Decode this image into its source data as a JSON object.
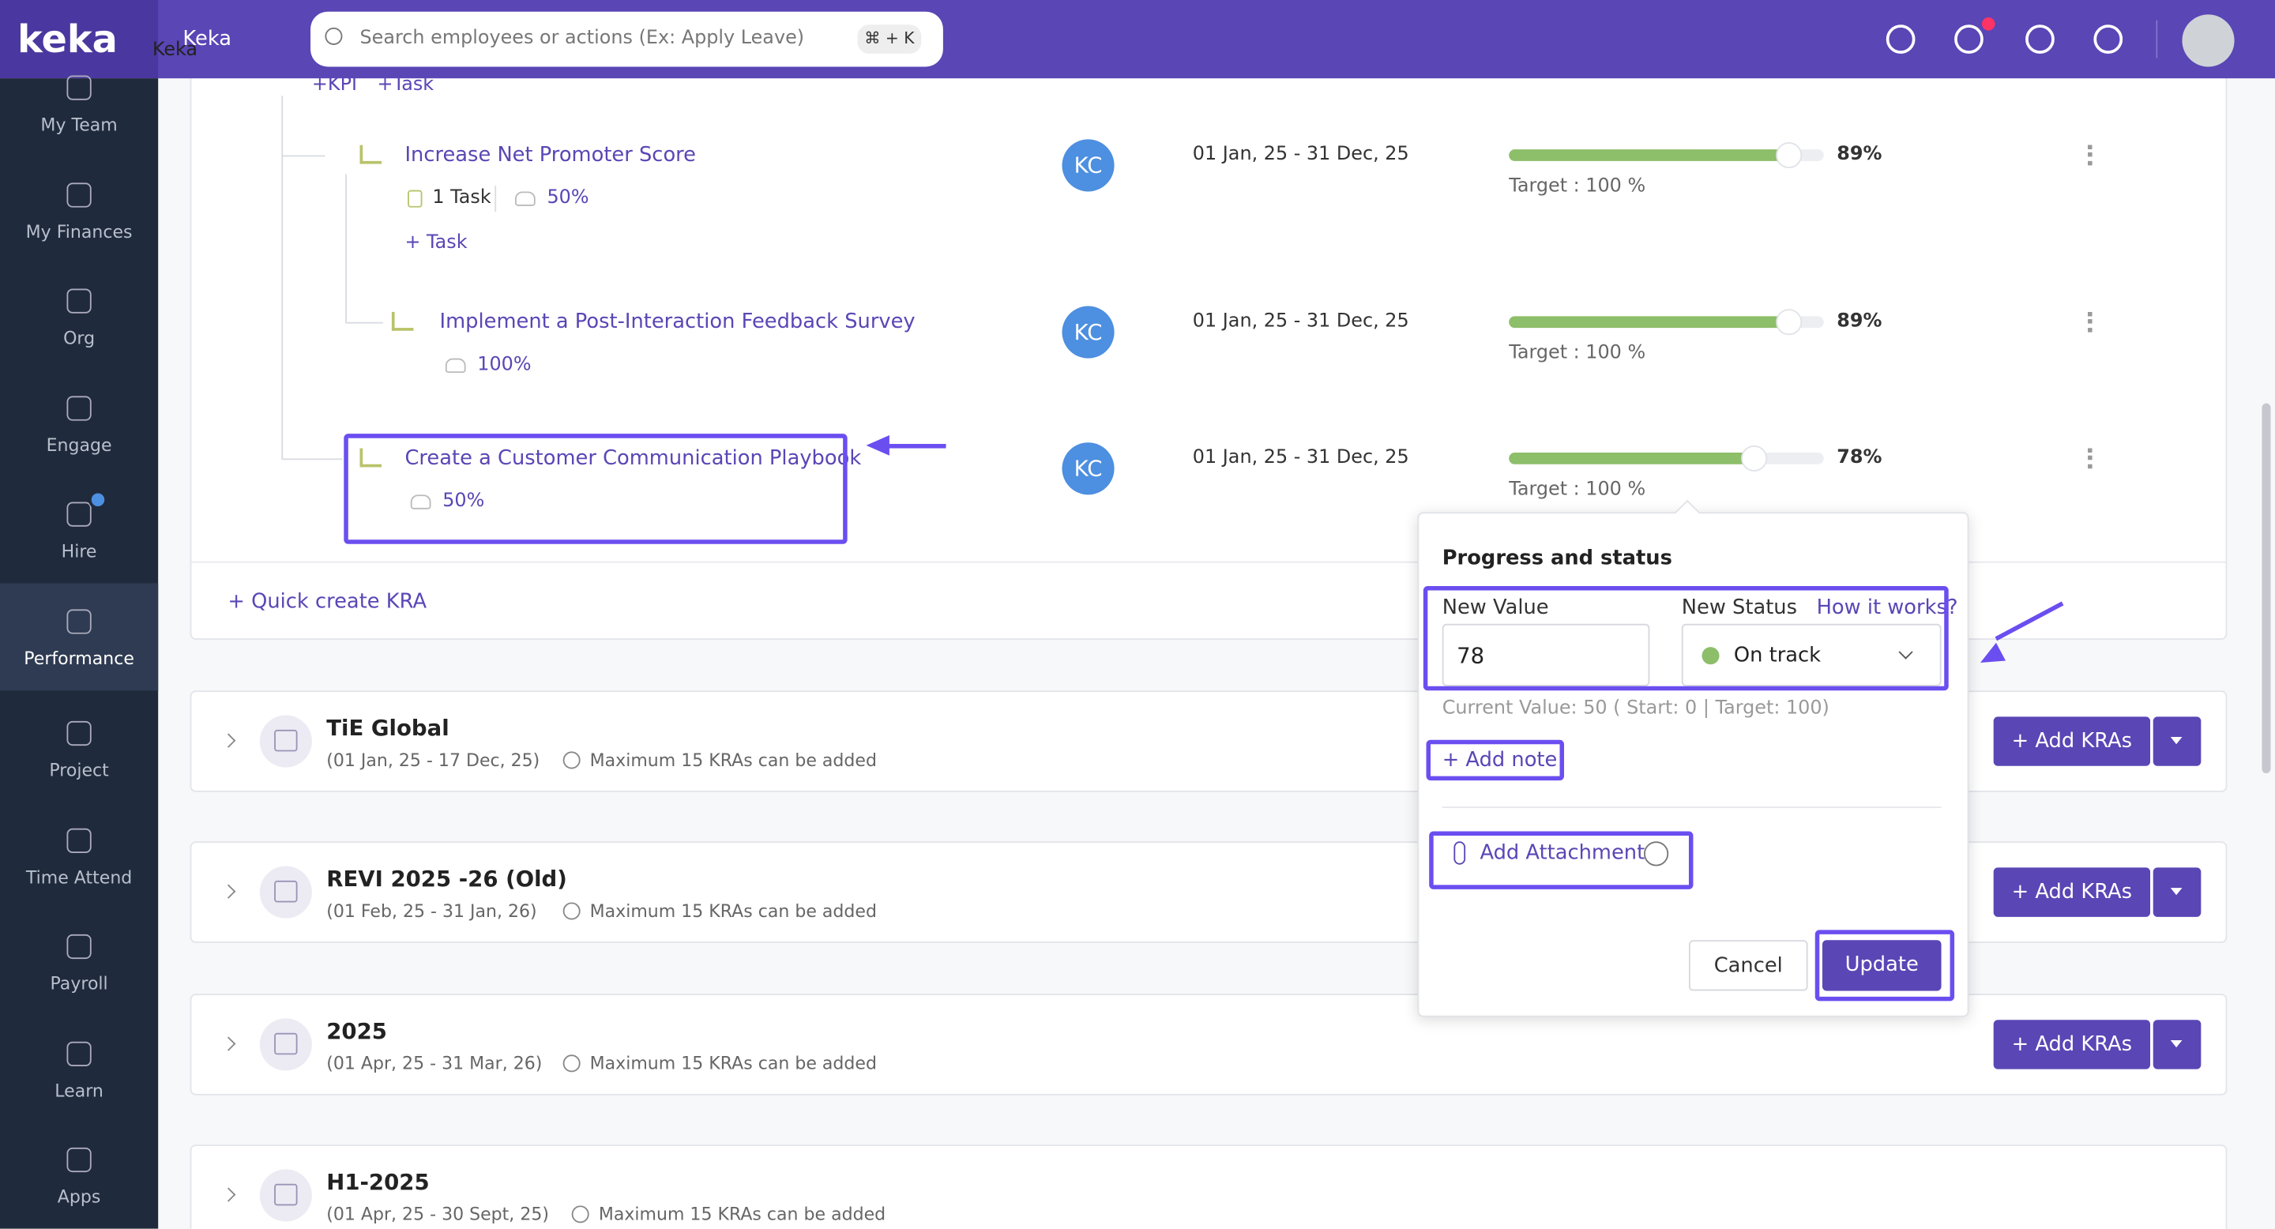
{
  "header": {
    "logo": "keka",
    "tooltip": "Keka",
    "app_name": "Keka",
    "search_placeholder": "Search employees or actions (Ex: Apply Leave)",
    "shortcut": "⌘ + K"
  },
  "sidebar": {
    "items": [
      "My Team",
      "My Finances",
      "Org",
      "Engage",
      "Hire",
      "Performance",
      "Project",
      "Time Attend",
      "Payroll",
      "Learn",
      "Apps"
    ],
    "active": 5
  },
  "objective": {
    "add_links": [
      "+KPI",
      "+Task"
    ],
    "items": [
      {
        "title": "Increase Net Promoter Score",
        "tasks": "1 Task",
        "weight": "50%",
        "add_task": "+ Task",
        "owner": "KC",
        "dates": "01 Jan, 25 - 31 Dec, 25",
        "progress": 89,
        "progress_label": "89%",
        "target": "Target : 100 %"
      },
      {
        "title": "Implement a Post-Interaction Feedback Survey",
        "weight": "100%",
        "owner": "KC",
        "dates": "01 Jan, 25 - 31 Dec, 25",
        "progress": 89,
        "progress_label": "89%",
        "target": "Target : 100 %"
      },
      {
        "title": "Create a Customer Communication Playbook",
        "weight": "50%",
        "owner": "KC",
        "dates": "01 Jan, 25 - 31 Dec, 25",
        "progress": 78,
        "progress_label": "78%",
        "target": "Target : 100 %"
      }
    ],
    "quick_create": "+ Quick create KRA"
  },
  "groups": [
    {
      "name": "TiE Global",
      "dates": "(01 Jan, 25 - 17 Dec, 25)",
      "note": "Maximum 15 KRAs can be added",
      "button": "+ Add KRAs"
    },
    {
      "name": "REVI 2025 -26 (Old)",
      "dates": "(01 Feb, 25 - 31 Jan, 26)",
      "note": "Maximum 15 KRAs can be added",
      "button": "+ Add KRAs"
    },
    {
      "name": "2025",
      "dates": "(01 Apr, 25 - 31 Mar, 26)",
      "note": "Maximum 15 KRAs can be added",
      "button": "+ Add KRAs"
    },
    {
      "name": "H1-2025",
      "dates": "(01 Apr, 25 - 30 Sept, 25)",
      "note": "Maximum 15 KRAs can be added"
    }
  ],
  "popup": {
    "title": "Progress and status",
    "value_label": "New Value",
    "value": "78",
    "status_label": "New Status",
    "help": "How it works?",
    "status": "On track",
    "current": "Current Value: 50 ( Start: 0 | Target: 100)",
    "add_note": "+ Add note",
    "attachment": "Add Attachment",
    "cancel": "Cancel",
    "update": "Update"
  }
}
